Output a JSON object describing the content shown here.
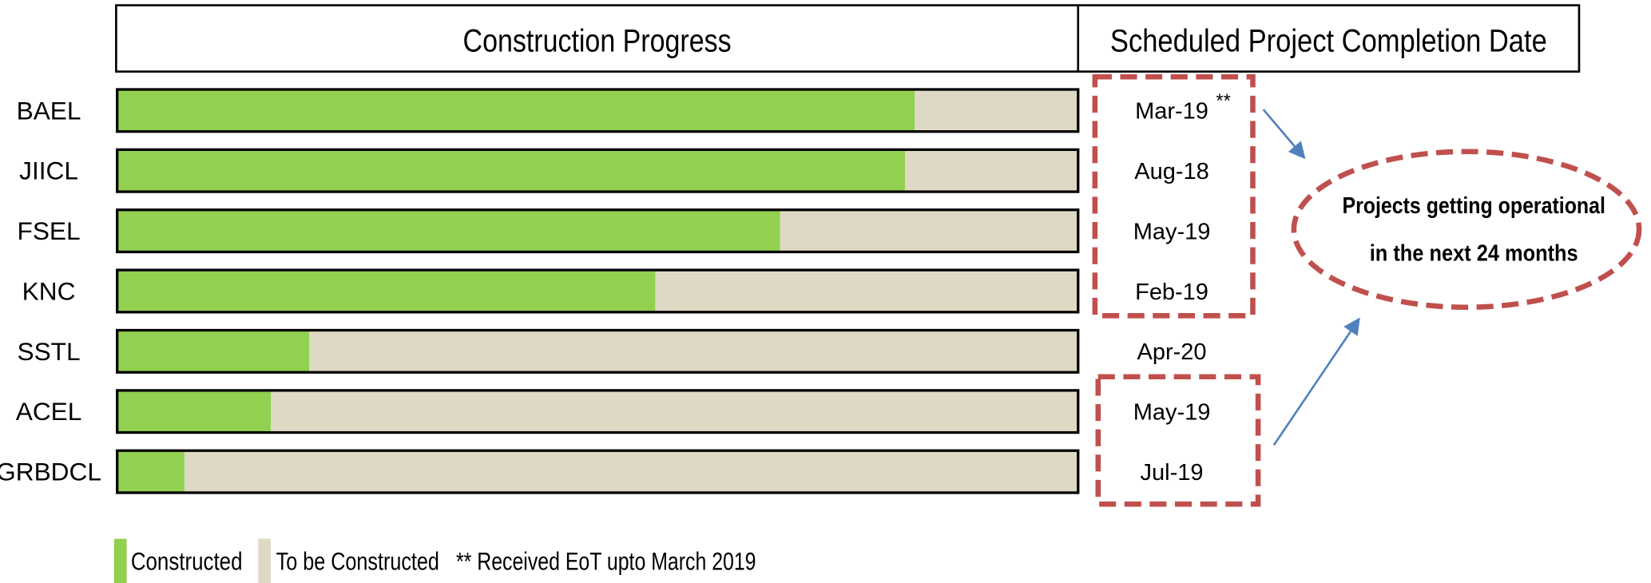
{
  "chart_data": {
    "type": "stacked_barh",
    "headers": [
      "Construction Progress",
      "Scheduled Project Completion Date"
    ],
    "categories": [
      "BAEL",
      "JIICL",
      "FSEL",
      "KNC",
      "SSTL",
      "ACEL",
      "GRBDCL"
    ],
    "series": [
      {
        "name": "Constructed",
        "color": "#92d050",
        "values": [
          83,
          82,
          69,
          56,
          20,
          16,
          7
        ]
      },
      {
        "name": "To be Constructed",
        "color": "#ddd9c4",
        "values": [
          17,
          18,
          31,
          44,
          80,
          84,
          93
        ]
      }
    ],
    "xlim": [
      0,
      100
    ],
    "completion_dates": [
      "Mar-19",
      "Aug-18",
      "May-19",
      "Feb-19",
      "Apr-20",
      "May-19",
      "Jul-19"
    ],
    "date_marker": "**",
    "callout": [
      "Projects getting operational",
      "in the next 24 months"
    ],
    "note": "** Received EoT upto March 2019"
  }
}
